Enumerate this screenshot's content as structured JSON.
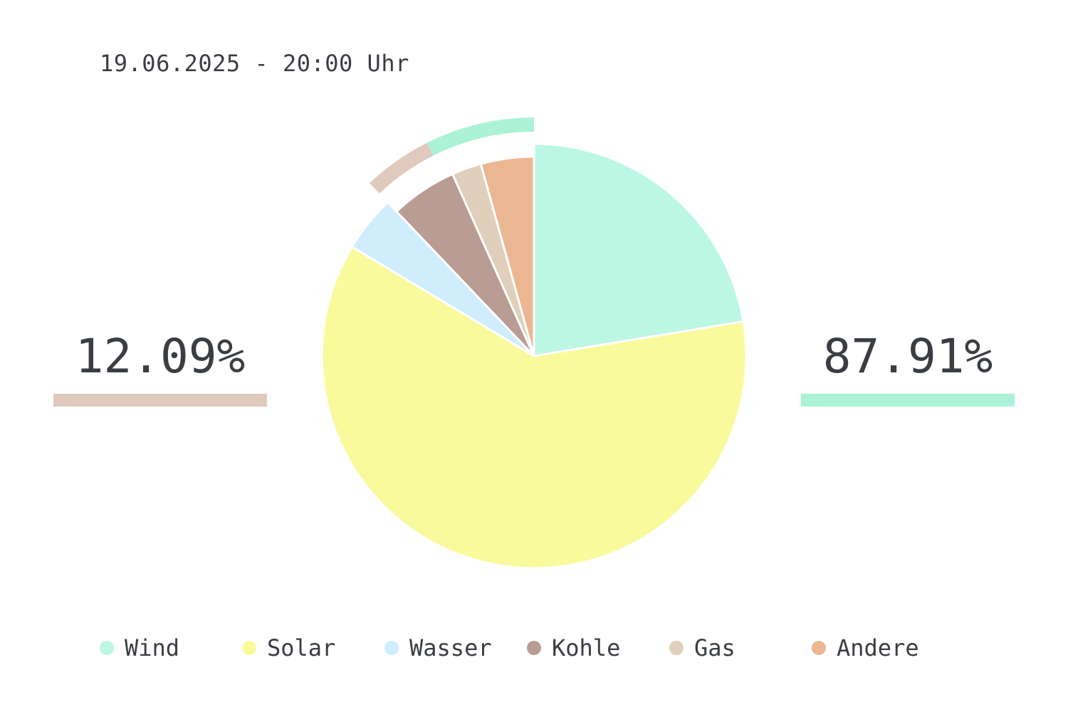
{
  "timestamp": "19.06.2025 - 20:00 Uhr",
  "non_renewable_share": "12.09%",
  "renewable_share": "87.91%",
  "colors": {
    "renewable": "#acf2d6",
    "non_renewable": "#e0cabd",
    "text": "#3a3d42"
  },
  "chart_data": {
    "type": "pie",
    "title": "",
    "start_angle": "12 o'clock",
    "direction": "clockwise",
    "slices": [
      {
        "name": "Wind",
        "value": 22.4,
        "color": "#bcf7e3",
        "group": "renewable"
      },
      {
        "name": "Solar",
        "value": 61.2,
        "color": "#f9fa9b",
        "group": "renewable"
      },
      {
        "name": "Wasser",
        "value": 4.3,
        "color": "#d0edfd",
        "group": "renewable"
      },
      {
        "name": "Kohle",
        "value": 5.4,
        "color": "#b99c93",
        "group": "non_renewable"
      },
      {
        "name": "Gas",
        "value": 2.4,
        "color": "#e0cfbb",
        "group": "non_renewable"
      },
      {
        "name": "Andere",
        "value": 4.3,
        "color": "#ebb793",
        "group": "non_renewable"
      }
    ],
    "outer_ring": [
      {
        "label": "renewable",
        "value": 87.91,
        "color": "#acf2d6"
      },
      {
        "label": "non_renewable",
        "value": 12.09,
        "color": "#e0cabd"
      }
    ],
    "legend": [
      "Wind",
      "Solar",
      "Wasser",
      "Kohle",
      "Gas",
      "Andere"
    ],
    "legend_placement": "bottom"
  }
}
